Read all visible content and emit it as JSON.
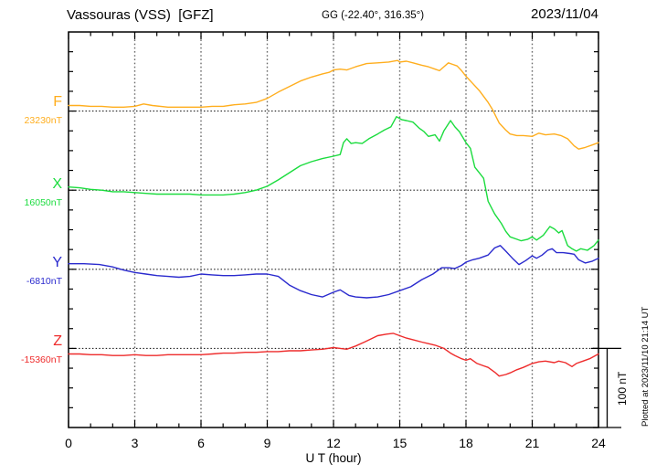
{
  "header": {
    "title": "Vassouras (VSS)  [GFZ]",
    "geo_coords": "GG (-22.40°, 316.35°)",
    "date": "2023/11/04"
  },
  "footer": {
    "xlabel": "U T (hour)",
    "plotted_at": "Plotted at 2023/11/10 21:14 UT"
  },
  "scale_bar": {
    "label": "100 nT",
    "value_nT": 100
  },
  "colors": {
    "frame": "#000000",
    "grid_vertical": "#6b6b6b",
    "grid_baseline": "#222222"
  },
  "chart_data": {
    "type": "line",
    "title": "Vassouras (VSS) [GFZ] magnetogram, 2023/11/04",
    "xlabel": "U T (hour)",
    "xlim": [
      0,
      24
    ],
    "xticks": [
      0,
      3,
      6,
      9,
      12,
      15,
      18,
      21,
      24
    ],
    "x_minor_tick_step_hours": 1,
    "grid": "dotted vertical gridlines every 3 h; dotted horizontal line at each trace baseline",
    "y_scale_note": "scale bar = 100 nT; point values are nT offsets from each trace baseline",
    "series": [
      {
        "name": "F",
        "baseline_label": "23230nT",
        "baseline_nT": 23230,
        "color": "#ffae1e",
        "points": [
          [
            0,
            7
          ],
          [
            0.5,
            7
          ],
          [
            1,
            6
          ],
          [
            1.5,
            6
          ],
          [
            2,
            5
          ],
          [
            2.5,
            5
          ],
          [
            3,
            6
          ],
          [
            3.4,
            9
          ],
          [
            3.8,
            7
          ],
          [
            4.5,
            5
          ],
          [
            5,
            5
          ],
          [
            5.5,
            5
          ],
          [
            6,
            5
          ],
          [
            6.5,
            6
          ],
          [
            7,
            6
          ],
          [
            7.5,
            8
          ],
          [
            8,
            9
          ],
          [
            8.5,
            11
          ],
          [
            9,
            16
          ],
          [
            9.5,
            24
          ],
          [
            10,
            31
          ],
          [
            10.5,
            38
          ],
          [
            11,
            43
          ],
          [
            11.5,
            47
          ],
          [
            11.8,
            49
          ],
          [
            12,
            52
          ],
          [
            12.3,
            53
          ],
          [
            12.6,
            52
          ],
          [
            13,
            56
          ],
          [
            13.5,
            60
          ],
          [
            14,
            61
          ],
          [
            14.5,
            62
          ],
          [
            14.9,
            64
          ],
          [
            15,
            62
          ],
          [
            15.3,
            63
          ],
          [
            15.6,
            61
          ],
          [
            16,
            58
          ],
          [
            16.3,
            56
          ],
          [
            16.6,
            53
          ],
          [
            16.8,
            51
          ],
          [
            17,
            56
          ],
          [
            17.2,
            61
          ],
          [
            17.4,
            59
          ],
          [
            17.6,
            57
          ],
          [
            17.8,
            51
          ],
          [
            18,
            44
          ],
          [
            18.3,
            35
          ],
          [
            18.6,
            26
          ],
          [
            19,
            11
          ],
          [
            19.2,
            2
          ],
          [
            19.5,
            -15
          ],
          [
            19.8,
            -24
          ],
          [
            20,
            -29
          ],
          [
            20.3,
            -31
          ],
          [
            20.6,
            -31
          ],
          [
            21,
            -32
          ],
          [
            21.3,
            -28
          ],
          [
            21.6,
            -30
          ],
          [
            22,
            -29
          ],
          [
            22.3,
            -31
          ],
          [
            22.6,
            -35
          ],
          [
            22.9,
            -44
          ],
          [
            23.1,
            -48
          ],
          [
            23.4,
            -46
          ],
          [
            23.7,
            -43
          ],
          [
            24,
            -40
          ]
        ]
      },
      {
        "name": "X",
        "baseline_label": "16050nT",
        "baseline_nT": 16050,
        "color": "#1bdc3e",
        "points": [
          [
            0,
            4
          ],
          [
            0.5,
            3
          ],
          [
            1,
            1
          ],
          [
            1.5,
            0
          ],
          [
            2,
            -2
          ],
          [
            2.5,
            -2
          ],
          [
            3,
            -3
          ],
          [
            3.5,
            -4
          ],
          [
            4,
            -5
          ],
          [
            4.5,
            -5
          ],
          [
            5,
            -5
          ],
          [
            5.5,
            -5
          ],
          [
            6,
            -6
          ],
          [
            6.5,
            -6
          ],
          [
            7,
            -6
          ],
          [
            7.5,
            -5
          ],
          [
            8,
            -3
          ],
          [
            8.5,
            0
          ],
          [
            9,
            5
          ],
          [
            9.5,
            13
          ],
          [
            10,
            22
          ],
          [
            10.5,
            31
          ],
          [
            11,
            36
          ],
          [
            11.5,
            40
          ],
          [
            12,
            43
          ],
          [
            12.3,
            45
          ],
          [
            12.45,
            60
          ],
          [
            12.6,
            65
          ],
          [
            12.8,
            59
          ],
          [
            13,
            60
          ],
          [
            13.3,
            59
          ],
          [
            13.6,
            65
          ],
          [
            14,
            71
          ],
          [
            14.3,
            76
          ],
          [
            14.6,
            80
          ],
          [
            14.85,
            93
          ],
          [
            15.1,
            89
          ],
          [
            15.3,
            88
          ],
          [
            15.6,
            86
          ],
          [
            15.9,
            78
          ],
          [
            16.1,
            74
          ],
          [
            16.3,
            68
          ],
          [
            16.6,
            70
          ],
          [
            16.8,
            62
          ],
          [
            17,
            75
          ],
          [
            17.3,
            88
          ],
          [
            17.5,
            80
          ],
          [
            17.7,
            74
          ],
          [
            18,
            60
          ],
          [
            18.2,
            53
          ],
          [
            18.4,
            29
          ],
          [
            18.6,
            22
          ],
          [
            18.8,
            15
          ],
          [
            19,
            -14
          ],
          [
            19.3,
            -30
          ],
          [
            19.6,
            -42
          ],
          [
            19.8,
            -52
          ],
          [
            20,
            -59
          ],
          [
            20.3,
            -62
          ],
          [
            20.5,
            -64
          ],
          [
            20.8,
            -62
          ],
          [
            21,
            -59
          ],
          [
            21.2,
            -63
          ],
          [
            21.5,
            -57
          ],
          [
            21.8,
            -46
          ],
          [
            22,
            -49
          ],
          [
            22.2,
            -54
          ],
          [
            22.35,
            -51
          ],
          [
            22.6,
            -70
          ],
          [
            22.8,
            -74
          ],
          [
            23,
            -77
          ],
          [
            23.2,
            -74
          ],
          [
            23.5,
            -76
          ],
          [
            23.8,
            -70
          ],
          [
            24,
            -63
          ]
        ]
      },
      {
        "name": "Y",
        "baseline_label": "-6810nT",
        "baseline_nT": -6810,
        "color": "#2a2ace",
        "points": [
          [
            0,
            7
          ],
          [
            0.7,
            7
          ],
          [
            1.4,
            6
          ],
          [
            2,
            3
          ],
          [
            2.5,
            -1
          ],
          [
            3,
            -4
          ],
          [
            3.5,
            -6
          ],
          [
            4,
            -8
          ],
          [
            4.5,
            -9
          ],
          [
            5,
            -10
          ],
          [
            5.5,
            -9
          ],
          [
            6,
            -6
          ],
          [
            6.5,
            -7
          ],
          [
            7,
            -8
          ],
          [
            7.5,
            -8
          ],
          [
            8,
            -7
          ],
          [
            8.5,
            -6
          ],
          [
            9,
            -6
          ],
          [
            9.5,
            -9
          ],
          [
            10,
            -20
          ],
          [
            10.5,
            -27
          ],
          [
            11,
            -32
          ],
          [
            11.5,
            -35
          ],
          [
            12,
            -29
          ],
          [
            12.3,
            -26
          ],
          [
            12.7,
            -33
          ],
          [
            13,
            -35
          ],
          [
            13.5,
            -36
          ],
          [
            14,
            -35
          ],
          [
            14.5,
            -32
          ],
          [
            15,
            -27
          ],
          [
            15.5,
            -22
          ],
          [
            16,
            -13
          ],
          [
            16.5,
            -6
          ],
          [
            16.9,
            2
          ],
          [
            17.2,
            2
          ],
          [
            17.5,
            1
          ],
          [
            17.8,
            5
          ],
          [
            18,
            9
          ],
          [
            18.3,
            12
          ],
          [
            18.6,
            14
          ],
          [
            19,
            18
          ],
          [
            19.3,
            27
          ],
          [
            19.55,
            30
          ],
          [
            19.8,
            23
          ],
          [
            20.1,
            14
          ],
          [
            20.4,
            6
          ],
          [
            20.7,
            11
          ],
          [
            21,
            17
          ],
          [
            21.2,
            14
          ],
          [
            21.45,
            18
          ],
          [
            21.7,
            24
          ],
          [
            21.9,
            26
          ],
          [
            22.1,
            21
          ],
          [
            22.4,
            21
          ],
          [
            22.7,
            20
          ],
          [
            22.9,
            19
          ],
          [
            23.1,
            12
          ],
          [
            23.4,
            8
          ],
          [
            23.7,
            10
          ],
          [
            24,
            14
          ]
        ]
      },
      {
        "name": "Z",
        "baseline_label": "-15360nT",
        "baseline_nT": -15360,
        "color": "#ee2b2b",
        "points": [
          [
            0,
            -7
          ],
          [
            0.5,
            -7
          ],
          [
            1,
            -8
          ],
          [
            1.5,
            -8
          ],
          [
            2,
            -9
          ],
          [
            2.5,
            -9
          ],
          [
            3,
            -8
          ],
          [
            3.5,
            -9
          ],
          [
            4,
            -9
          ],
          [
            4.5,
            -8
          ],
          [
            5,
            -8
          ],
          [
            5.5,
            -8
          ],
          [
            6,
            -8
          ],
          [
            6.5,
            -7
          ],
          [
            7,
            -6
          ],
          [
            7.5,
            -6
          ],
          [
            8,
            -5
          ],
          [
            8.5,
            -5
          ],
          [
            9,
            -4
          ],
          [
            9.5,
            -4
          ],
          [
            10,
            -3
          ],
          [
            10.5,
            -3
          ],
          [
            11,
            -2
          ],
          [
            11.5,
            -1
          ],
          [
            12,
            1
          ],
          [
            12.3,
            0
          ],
          [
            12.6,
            -1
          ],
          [
            13,
            3
          ],
          [
            13.4,
            8
          ],
          [
            13.7,
            12
          ],
          [
            14,
            16
          ],
          [
            14.4,
            18
          ],
          [
            14.7,
            19
          ],
          [
            15,
            16
          ],
          [
            15.3,
            13
          ],
          [
            15.6,
            11
          ],
          [
            16,
            8
          ],
          [
            16.3,
            6
          ],
          [
            16.6,
            4
          ],
          [
            17,
            0
          ],
          [
            17.3,
            -6
          ],
          [
            17.5,
            -9
          ],
          [
            17.8,
            -13
          ],
          [
            18,
            -15
          ],
          [
            18.2,
            -13
          ],
          [
            18.5,
            -19
          ],
          [
            18.8,
            -22
          ],
          [
            19,
            -24
          ],
          [
            19.3,
            -30
          ],
          [
            19.5,
            -35
          ],
          [
            19.8,
            -33
          ],
          [
            20,
            -31
          ],
          [
            20.3,
            -27
          ],
          [
            20.6,
            -24
          ],
          [
            21,
            -19
          ],
          [
            21.3,
            -17
          ],
          [
            21.6,
            -16
          ],
          [
            22,
            -18
          ],
          [
            22.2,
            -16
          ],
          [
            22.5,
            -18
          ],
          [
            22.8,
            -23
          ],
          [
            23,
            -19
          ],
          [
            23.3,
            -16
          ],
          [
            23.6,
            -13
          ],
          [
            24,
            -7
          ]
        ]
      }
    ]
  }
}
